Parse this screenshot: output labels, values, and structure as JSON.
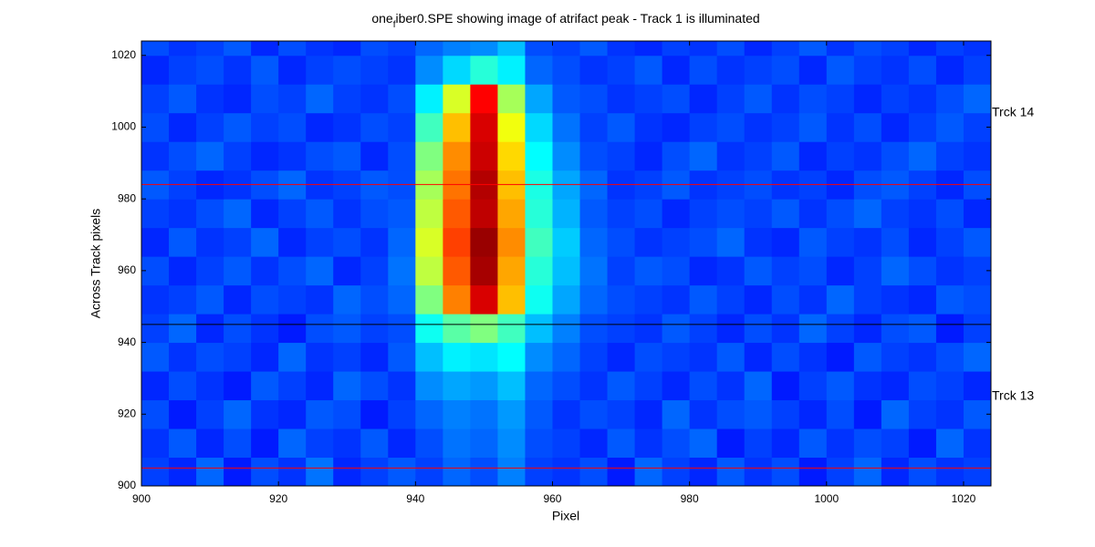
{
  "chart_data": {
    "type": "heatmap",
    "title": {
      "before": "one",
      "sub": "f",
      "after": "iber0.SPE showing image of atrifact peak  - Track 1 is illuminated"
    },
    "x_label": "Pixel",
    "y_label": "Across Track pixels",
    "xlim": [
      900,
      1024
    ],
    "ylim": [
      900,
      1024
    ],
    "xticks": [
      900,
      920,
      940,
      960,
      980,
      1000,
      1020
    ],
    "yticks": [
      900,
      920,
      940,
      960,
      980,
      1000,
      1020
    ],
    "colormap": "jet",
    "clim": [
      15,
      95
    ],
    "xbins": [
      900,
      904,
      908,
      912,
      916,
      920,
      924,
      928,
      932,
      936,
      940,
      944,
      948,
      952,
      956,
      960,
      964,
      968,
      972,
      976,
      980,
      984,
      988,
      992,
      996,
      1000,
      1004,
      1008,
      1012,
      1016,
      1020,
      1024
    ],
    "ybins": [
      900,
      908,
      916,
      924,
      932,
      940,
      948,
      956,
      964,
      972,
      980,
      988,
      996,
      1004,
      1012,
      1020,
      1024
    ],
    "values": [
      [
        30,
        28,
        33,
        27,
        31,
        29,
        34,
        28,
        30,
        32,
        30,
        33,
        31,
        35,
        30,
        29,
        31,
        27,
        33,
        30,
        28,
        32,
        29,
        31,
        27,
        30,
        33,
        28,
        31,
        29,
        30
      ],
      [
        29,
        32,
        28,
        31,
        27,
        33,
        30,
        29,
        32,
        28,
        31,
        34,
        33,
        36,
        31,
        30,
        28,
        32,
        29,
        31,
        33,
        27,
        30,
        28,
        32,
        29,
        31,
        30,
        27,
        33,
        29
      ],
      [
        31,
        27,
        30,
        33,
        29,
        28,
        32,
        31,
        27,
        30,
        33,
        35,
        34,
        37,
        32,
        29,
        31,
        30,
        28,
        33,
        29,
        31,
        32,
        30,
        28,
        31,
        27,
        33,
        30,
        29,
        32
      ],
      [
        28,
        31,
        29,
        27,
        32,
        30,
        28,
        33,
        31,
        29,
        36,
        38,
        37,
        40,
        33,
        31,
        29,
        32,
        30,
        28,
        31,
        29,
        33,
        27,
        30,
        32,
        29,
        28,
        31,
        30,
        28
      ],
      [
        32,
        29,
        31,
        30,
        28,
        33,
        29,
        30,
        28,
        32,
        40,
        44,
        43,
        45,
        36,
        33,
        30,
        28,
        31,
        30,
        29,
        32,
        28,
        31,
        29,
        27,
        32,
        30,
        29,
        31,
        33
      ],
      [
        30,
        33,
        28,
        31,
        29,
        27,
        31,
        32,
        30,
        31,
        46,
        52,
        55,
        50,
        40,
        35,
        31,
        30,
        29,
        32,
        30,
        28,
        31,
        29,
        33,
        30,
        28,
        31,
        32,
        27,
        30
      ],
      [
        29,
        30,
        32,
        28,
        31,
        30,
        29,
        33,
        31,
        33,
        55,
        75,
        88,
        70,
        46,
        38,
        33,
        31,
        30,
        29,
        32,
        30,
        28,
        31,
        29,
        33,
        30,
        29,
        28,
        32,
        31
      ],
      [
        31,
        28,
        30,
        32,
        29,
        31,
        33,
        28,
        30,
        34,
        60,
        78,
        92,
        72,
        48,
        40,
        34,
        30,
        32,
        31,
        28,
        29,
        32,
        30,
        31,
        28,
        30,
        33,
        31,
        29,
        30
      ],
      [
        28,
        32,
        29,
        30,
        33,
        28,
        30,
        31,
        29,
        33,
        62,
        80,
        93,
        74,
        50,
        41,
        33,
        31,
        29,
        30,
        31,
        33,
        29,
        28,
        32,
        30,
        29,
        31,
        28,
        30,
        32
      ],
      [
        30,
        29,
        31,
        33,
        28,
        30,
        32,
        29,
        31,
        32,
        60,
        78,
        90,
        72,
        48,
        39,
        32,
        30,
        31,
        28,
        30,
        31,
        30,
        32,
        29,
        31,
        33,
        30,
        29,
        31,
        28
      ],
      [
        32,
        30,
        28,
        29,
        31,
        33,
        29,
        30,
        32,
        31,
        58,
        76,
        91,
        70,
        47,
        38,
        33,
        29,
        30,
        32,
        29,
        30,
        31,
        29,
        30,
        28,
        31,
        32,
        30,
        28,
        31
      ],
      [
        29,
        31,
        33,
        30,
        28,
        29,
        31,
        32,
        28,
        31,
        55,
        74,
        89,
        68,
        45,
        36,
        31,
        30,
        28,
        31,
        33,
        29,
        30,
        32,
        28,
        30,
        29,
        31,
        33,
        30,
        29
      ],
      [
        31,
        28,
        30,
        32,
        30,
        31,
        28,
        29,
        31,
        30,
        50,
        70,
        88,
        64,
        42,
        34,
        30,
        32,
        29,
        28,
        30,
        31,
        29,
        30,
        32,
        29,
        31,
        28,
        30,
        32,
        30
      ],
      [
        30,
        32,
        29,
        28,
        31,
        30,
        33,
        30,
        29,
        31,
        44,
        62,
        85,
        58,
        38,
        32,
        31,
        29,
        30,
        31,
        28,
        30,
        32,
        29,
        31,
        30,
        28,
        30,
        29,
        31,
        33
      ],
      [
        28,
        30,
        31,
        29,
        32,
        28,
        30,
        31,
        30,
        29,
        36,
        42,
        48,
        44,
        33,
        31,
        29,
        30,
        32,
        28,
        31,
        29,
        30,
        31,
        28,
        32,
        30,
        29,
        31,
        28,
        30
      ],
      [
        31,
        29,
        30,
        32,
        28,
        31,
        29,
        28,
        31,
        30,
        33,
        35,
        36,
        40,
        31,
        30,
        32,
        29,
        28,
        30,
        29,
        31,
        28,
        30,
        32,
        29,
        31,
        30,
        28,
        30,
        29
      ]
    ],
    "hlines": [
      {
        "y": 984,
        "color": "#ff0000"
      },
      {
        "y": 945,
        "color": "#000000"
      },
      {
        "y": 905,
        "color": "#ff0000"
      }
    ],
    "annotations": [
      {
        "text": "Trck 14",
        "y": 1004
      },
      {
        "text": "Trck 13",
        "y": 925
      }
    ]
  }
}
